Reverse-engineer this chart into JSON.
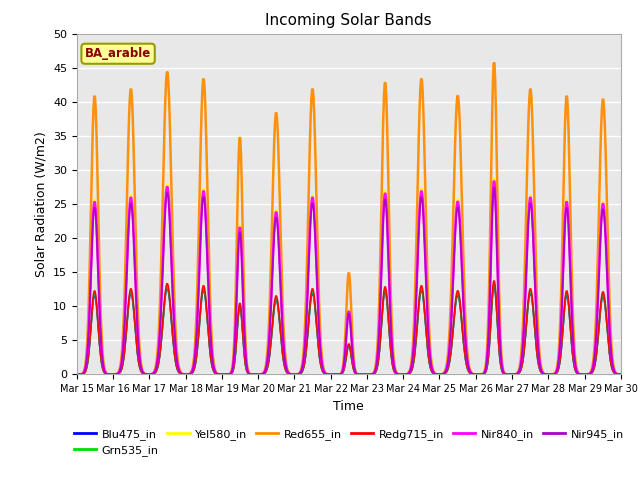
{
  "title": "Incoming Solar Bands",
  "xlabel": "Time",
  "ylabel": "Solar Radiation (W/m2)",
  "annotation": "BA_arable",
  "annotation_color": "#8B0000",
  "annotation_bg": "#FFFF99",
  "annotation_border": "#999900",
  "ylim": [
    0,
    50
  ],
  "series_order": [
    "Blu475_in",
    "Grn535_in",
    "Yel580_in",
    "Red655_in",
    "Redg715_in",
    "Nir840_in",
    "Nir945_in"
  ],
  "series_colors": {
    "Blu475_in": "#0000FF",
    "Grn535_in": "#00DD00",
    "Yel580_in": "#FFFF00",
    "Red655_in": "#FF8C00",
    "Redg715_in": "#FF0000",
    "Nir840_in": "#FF00FF",
    "Nir945_in": "#AA00CC"
  },
  "series_lw": {
    "Blu475_in": 1.2,
    "Grn535_in": 1.2,
    "Yel580_in": 1.2,
    "Red655_in": 1.8,
    "Redg715_in": 1.2,
    "Nir840_in": 1.8,
    "Nir945_in": 1.2
  },
  "n_days": 15,
  "start_day": 15,
  "points_per_day": 48,
  "background_color": "#E8E8E8",
  "grid_color": "#FFFFFF",
  "fig_bg": "#FFFFFF",
  "day_peaks": [
    41,
    42,
    44.5,
    43.5,
    35,
    38.5,
    42,
    15,
    43,
    43.5,
    41,
    46,
    42,
    41,
    40.5
  ],
  "day_widths": [
    0.25,
    0.28,
    0.3,
    0.28,
    0.2,
    0.28,
    0.28,
    0.18,
    0.25,
    0.28,
    0.3,
    0.22,
    0.28,
    0.25,
    0.28
  ],
  "scale_factors": {
    "Blu475_in": 0.285,
    "Grn535_in": 0.29,
    "Yel580_in": 0.63,
    "Red655_in": 1.0,
    "Redg715_in": 0.3,
    "Nir840_in": 0.62,
    "Nir945_in": 0.6
  },
  "legend_ncol": 6,
  "legend_order": [
    "Blu475_in",
    "Grn535_in",
    "Yel580_in",
    "Red655_in",
    "Redg715_in",
    "Nir840_in",
    "Nir945_in"
  ]
}
